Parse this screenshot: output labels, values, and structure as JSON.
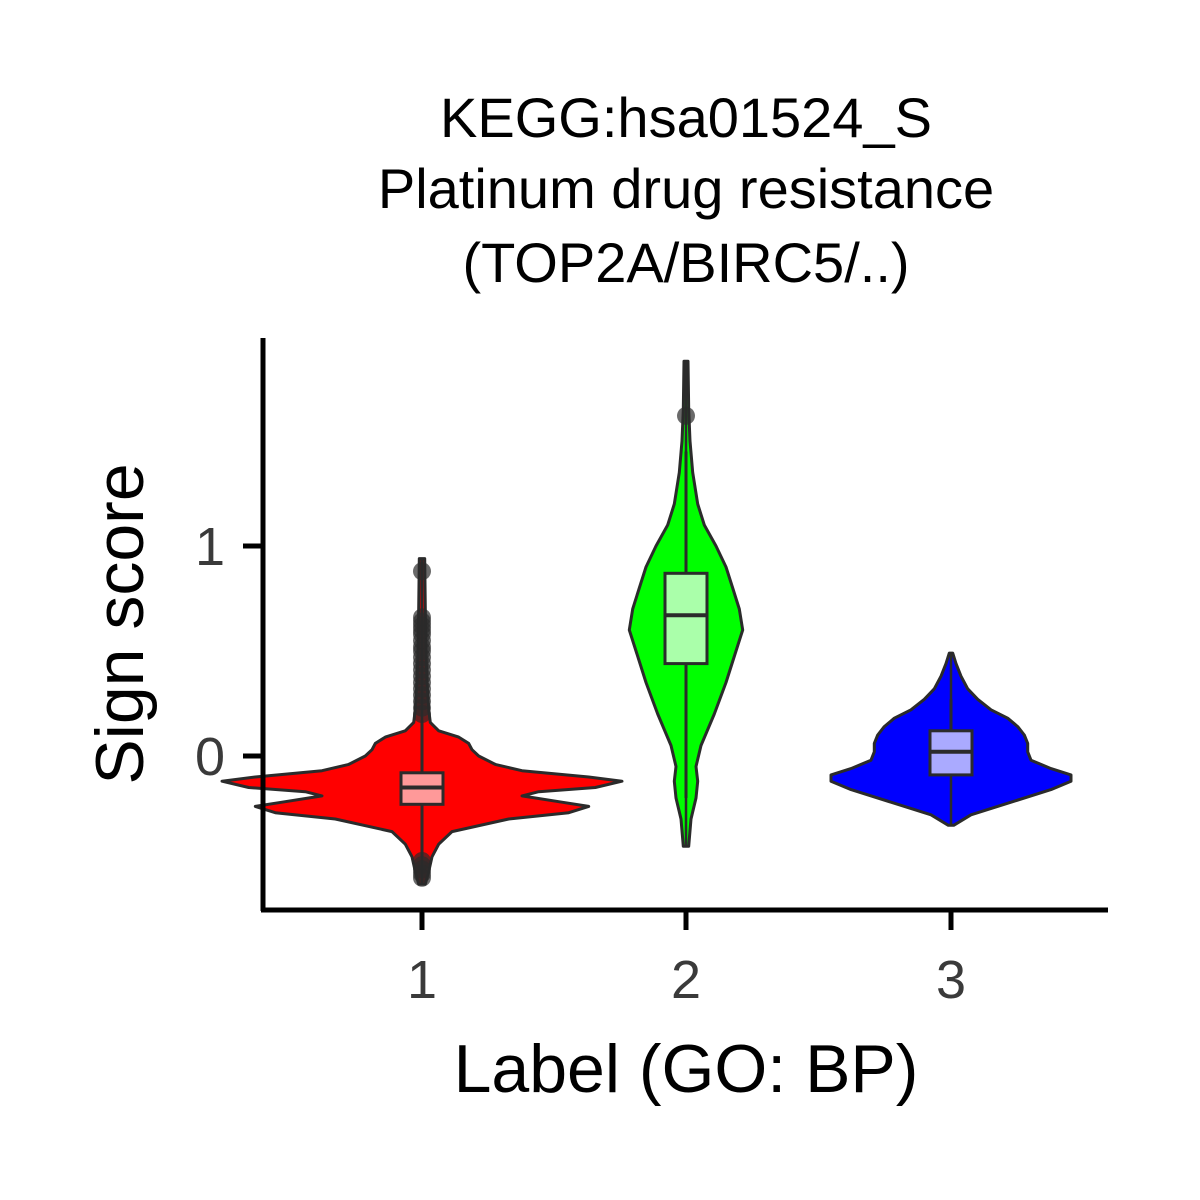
{
  "chart_data": {
    "type": "violin",
    "title_lines": [
      "KEGG:hsa01524_S",
      "Platinum drug resistance",
      "(TOP2A/BIRC5/..)"
    ],
    "xlabel": "Label (GO: BP)",
    "ylabel": "Sign score",
    "categories": [
      "1",
      "2",
      "3"
    ],
    "y_ticks": [
      0,
      1
    ],
    "ylim": [
      -0.74,
      1.98
    ],
    "grid": false,
    "legend": "none",
    "series": [
      {
        "category": "1",
        "fill": "#ff0000",
        "box_fill": "#ff9999",
        "ymin": -0.61,
        "ymax": 0.94,
        "q1": -0.23,
        "median": -0.15,
        "q3": -0.08,
        "whisker_low": -0.48,
        "whisker_high": 0.17,
        "outliers": [
          0.88,
          0.66,
          0.64,
          0.62,
          0.6,
          0.58,
          0.55,
          0.52,
          0.5,
          0.47,
          0.44,
          0.41,
          0.38,
          0.35,
          0.32,
          0.29,
          0.26,
          0.23,
          0.2,
          -0.5,
          -0.52,
          -0.54,
          -0.56,
          -0.58
        ],
        "density": [
          [
            -0.61,
            0.01
          ],
          [
            -0.55,
            0.02
          ],
          [
            -0.48,
            0.03
          ],
          [
            -0.42,
            0.05
          ],
          [
            -0.36,
            0.09
          ],
          [
            -0.3,
            0.26
          ],
          [
            -0.27,
            0.44
          ],
          [
            -0.24,
            0.5
          ],
          [
            -0.22,
            0.42
          ],
          [
            -0.19,
            0.3
          ],
          [
            -0.17,
            0.35
          ],
          [
            -0.15,
            0.52
          ],
          [
            -0.12,
            0.6
          ],
          [
            -0.1,
            0.5
          ],
          [
            -0.07,
            0.3
          ],
          [
            -0.04,
            0.22
          ],
          [
            0.0,
            0.17
          ],
          [
            0.03,
            0.15
          ],
          [
            0.06,
            0.14
          ],
          [
            0.09,
            0.11
          ],
          [
            0.12,
            0.05
          ],
          [
            0.16,
            0.025
          ],
          [
            0.22,
            0.02
          ],
          [
            0.35,
            0.015
          ],
          [
            0.5,
            0.012
          ],
          [
            0.7,
            0.01
          ],
          [
            0.94,
            0.008
          ]
        ]
      },
      {
        "category": "2",
        "fill": "#00ff00",
        "box_fill": "#aaffaa",
        "ymin": -0.43,
        "ymax": 1.88,
        "q1": 0.44,
        "median": 0.67,
        "q3": 0.87,
        "whisker_low": -0.2,
        "whisker_high": 1.45,
        "outliers": [
          1.62
        ],
        "density": [
          [
            -0.43,
            0.008
          ],
          [
            -0.3,
            0.015
          ],
          [
            -0.2,
            0.03
          ],
          [
            -0.12,
            0.035
          ],
          [
            -0.05,
            0.03
          ],
          [
            0.05,
            0.045
          ],
          [
            0.2,
            0.085
          ],
          [
            0.35,
            0.12
          ],
          [
            0.5,
            0.15
          ],
          [
            0.6,
            0.17
          ],
          [
            0.7,
            0.16
          ],
          [
            0.8,
            0.14
          ],
          [
            0.9,
            0.12
          ],
          [
            1.0,
            0.09
          ],
          [
            1.1,
            0.055
          ],
          [
            1.2,
            0.035
          ],
          [
            1.35,
            0.02
          ],
          [
            1.5,
            0.012
          ],
          [
            1.65,
            0.008
          ],
          [
            1.88,
            0.006
          ]
        ]
      },
      {
        "category": "3",
        "fill": "#0000ff",
        "box_fill": "#aaaaff",
        "ymin": -0.33,
        "ymax": 0.49,
        "q1": -0.09,
        "median": 0.02,
        "q3": 0.12,
        "whisker_low": -0.09,
        "whisker_high": 0.27,
        "outliers": [],
        "density": [
          [
            -0.33,
            0.008
          ],
          [
            -0.28,
            0.06
          ],
          [
            -0.22,
            0.18
          ],
          [
            -0.16,
            0.3
          ],
          [
            -0.12,
            0.36
          ],
          [
            -0.09,
            0.36
          ],
          [
            -0.06,
            0.3
          ],
          [
            -0.02,
            0.24
          ],
          [
            0.02,
            0.23
          ],
          [
            0.06,
            0.23
          ],
          [
            0.1,
            0.22
          ],
          [
            0.14,
            0.2
          ],
          [
            0.18,
            0.17
          ],
          [
            0.22,
            0.12
          ],
          [
            0.27,
            0.08
          ],
          [
            0.32,
            0.05
          ],
          [
            0.38,
            0.03
          ],
          [
            0.44,
            0.015
          ],
          [
            0.49,
            0.005
          ]
        ]
      }
    ]
  }
}
